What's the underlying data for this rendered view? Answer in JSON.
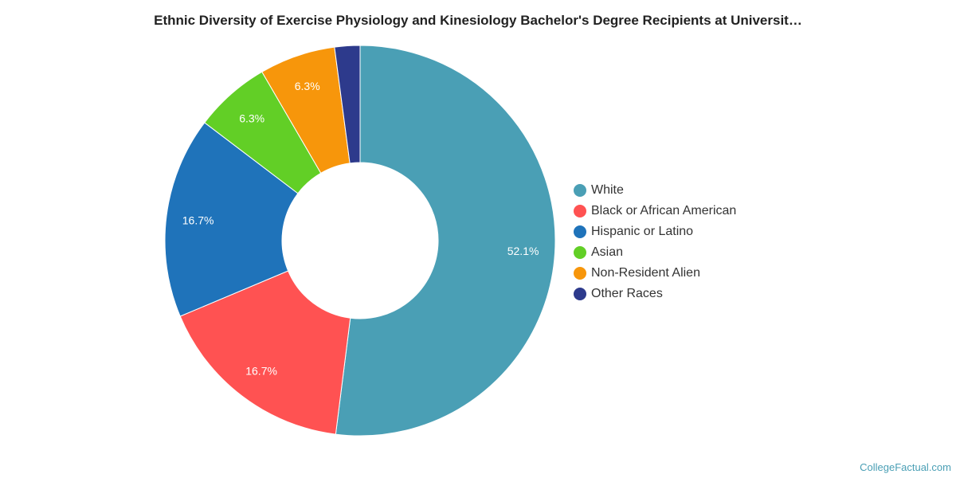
{
  "chart_data": {
    "type": "pie",
    "title": "Ethnic Diversity of Exercise Physiology and Kinesiology Bachelor's Degree Recipients at Universit…",
    "donut": true,
    "legend_position": "right",
    "slices": [
      {
        "name": "White",
        "value": 52.1,
        "label": "52.1%",
        "color": "#4a9fb5"
      },
      {
        "name": "Black or African American",
        "value": 16.7,
        "label": "16.7%",
        "color": "#ff5252"
      },
      {
        "name": "Hispanic or Latino",
        "value": 16.7,
        "label": "16.7%",
        "color": "#1f73ba"
      },
      {
        "name": "Asian",
        "value": 6.3,
        "label": "6.3%",
        "color": "#62cf26"
      },
      {
        "name": "Non-Resident Alien",
        "value": 6.3,
        "label": "6.3%",
        "color": "#f7960b"
      },
      {
        "name": "Other Races",
        "value": 2.1,
        "label": "",
        "color": "#2d3a8c"
      }
    ]
  },
  "credit": "CollegeFactual.com"
}
